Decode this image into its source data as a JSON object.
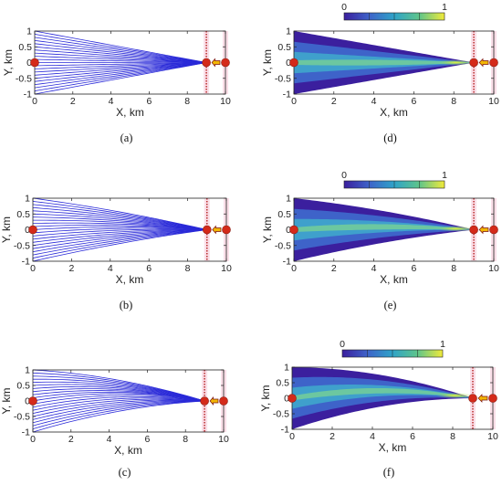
{
  "figure": {
    "panels": [
      {
        "id": "a",
        "kind": "lines",
        "caption": "(a)",
        "curve": 0.0
      },
      {
        "id": "d",
        "kind": "field",
        "caption": "(d)",
        "curve": 0.0,
        "colorbar": {
          "min_label": "0",
          "max_label": "1"
        }
      },
      {
        "id": "b",
        "kind": "lines",
        "caption": "(b)",
        "curve": 0.15
      },
      {
        "id": "e",
        "kind": "field",
        "caption": "(e)",
        "curve": 0.15,
        "colorbar": {
          "min_label": "0",
          "max_label": "1"
        }
      },
      {
        "id": "c",
        "kind": "lines",
        "caption": "(c)",
        "curve": 0.4
      },
      {
        "id": "f",
        "kind": "field",
        "caption": "(f)",
        "curve": 0.4,
        "colorbar": {
          "min_label": "0",
          "max_label": "1"
        }
      }
    ],
    "axes": {
      "xlabel": "X, km",
      "ylabel": "Y, km",
      "xlim": [
        0,
        10
      ],
      "ylim": [
        -1,
        1
      ],
      "xticks": [
        "0",
        "2",
        "4",
        "6",
        "8",
        "10"
      ],
      "yticks": [
        "-1",
        "-0.5",
        "0",
        "0.5",
        "1"
      ]
    },
    "markers": {
      "source_x": 0,
      "focus_x": 9,
      "receiver_x": 10,
      "dotted_line_x": 9
    },
    "colors": {
      "ray": "#2a2ad8",
      "marker": "#d42a1a",
      "dotted": "#b01010",
      "arrow_fill": "#f2b705",
      "arrow_stroke": "#7a1010",
      "field_outer": "#3b1f9e",
      "field_mid": "#3e63c9",
      "field_inner": "#3fa0cc",
      "field_core": "#6cc7a0",
      "field_hot": "#c8e94a"
    },
    "chart_data": [
      {
        "type": "line",
        "panel": "a",
        "x": [
          0,
          9
        ],
        "ylim": [
          -1,
          1
        ],
        "xlim": [
          0,
          10
        ]
      },
      {
        "type": "heatmap",
        "panel": "d",
        "x": [
          0,
          9
        ],
        "ylim": [
          -1,
          1
        ],
        "xlim": [
          0,
          10
        ],
        "range": [
          0,
          1
        ]
      },
      {
        "type": "line",
        "panel": "b",
        "x": [
          0,
          9
        ],
        "ylim": [
          -1,
          1
        ],
        "xlim": [
          0,
          10
        ]
      },
      {
        "type": "heatmap",
        "panel": "e",
        "x": [
          0,
          9
        ],
        "ylim": [
          -1,
          1
        ],
        "xlim": [
          0,
          10
        ],
        "range": [
          0,
          1
        ]
      },
      {
        "type": "line",
        "panel": "c",
        "x": [
          0,
          9
        ],
        "ylim": [
          -1,
          1
        ],
        "xlim": [
          0,
          10
        ]
      },
      {
        "type": "heatmap",
        "panel": "f",
        "x": [
          0,
          9
        ],
        "ylim": [
          -1,
          1
        ],
        "xlim": [
          0,
          10
        ],
        "range": [
          0,
          1
        ]
      }
    ]
  }
}
